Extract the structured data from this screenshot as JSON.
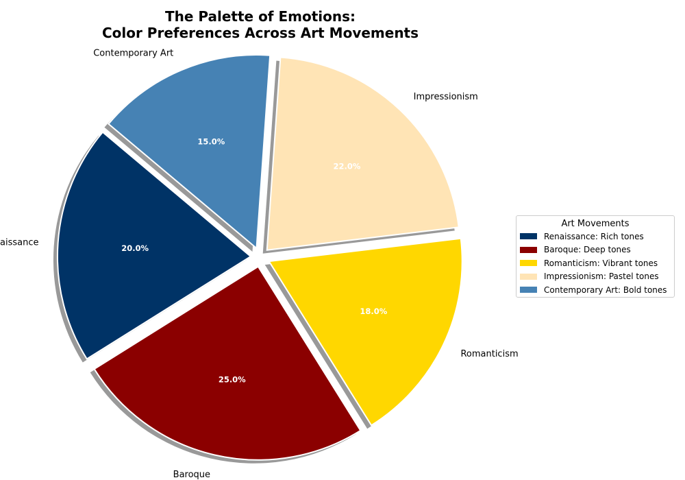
{
  "title_line1": "The Palette of Emotions:",
  "title_line2": "Color Preferences Across Art Movements",
  "chart_data": {
    "type": "pie",
    "title": "The Palette of Emotions:\nColor Preferences Across Art Movements",
    "categories": [
      "Renaissance",
      "Baroque",
      "Romanticism",
      "Impressionism",
      "Contemporary Art"
    ],
    "values": [
      20.0,
      25.0,
      18.0,
      22.0,
      15.0
    ],
    "value_labels": [
      "20.0%",
      "25.0%",
      "18.0%",
      "22.0%",
      "15.0%"
    ],
    "colors": [
      "#003366",
      "#8b0000",
      "#ffd700",
      "#ffe4b5",
      "#4682b4"
    ],
    "exploded": true,
    "shadow": true,
    "legend": {
      "title": "Art Movements",
      "placement": "center-right",
      "entries": [
        "Renaissance: Rich tones",
        "Baroque: Deep tones",
        "Romanticism: Vibrant tones",
        "Impressionism: Pastel tones",
        "Contemporary Art: Bold tones"
      ]
    }
  }
}
